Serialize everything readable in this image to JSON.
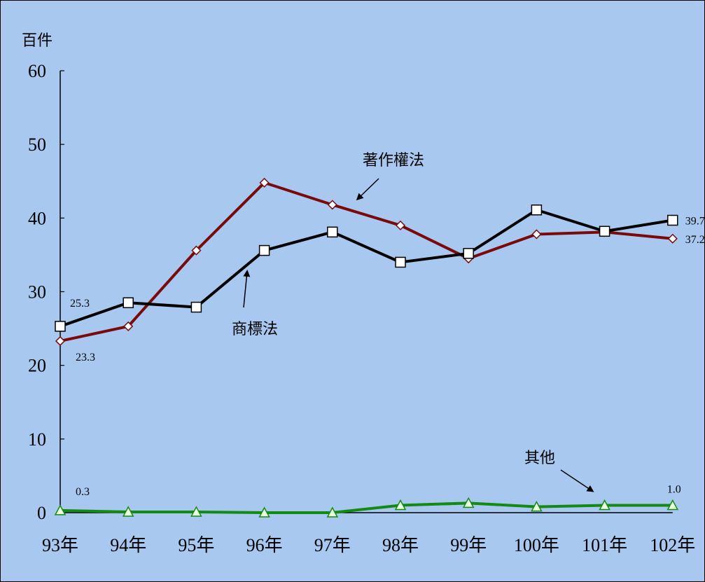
{
  "colors": {
    "background": "#a8c8ef",
    "axis": "#000000",
    "copyright": "#7a0a0a",
    "trademark": "#000000",
    "other": "#138a13"
  },
  "chart_data": {
    "type": "line",
    "title": "",
    "xlabel": "",
    "ylabel": "百件",
    "ylim": [
      0,
      60
    ],
    "yticks": [
      "0",
      "10",
      "20",
      "30",
      "40",
      "50",
      "60"
    ],
    "categories": [
      "93年",
      "94年",
      "95年",
      "96年",
      "97年",
      "98年",
      "99年",
      "100年",
      "101年",
      "102年"
    ],
    "grid": false,
    "series": [
      {
        "key": "copyright",
        "name": "著作權法",
        "marker": "diamond",
        "values": [
          23.3,
          25.3,
          35.6,
          44.8,
          41.8,
          39.0,
          34.5,
          37.8,
          38.1,
          37.2
        ]
      },
      {
        "key": "trademark",
        "name": "商標法",
        "marker": "square",
        "values": [
          25.3,
          28.5,
          27.9,
          35.6,
          38.1,
          34.0,
          35.2,
          41.1,
          38.2,
          39.7
        ]
      },
      {
        "key": "other",
        "name": "其他",
        "marker": "triangle",
        "values": [
          0.3,
          0.1,
          0.1,
          0.0,
          0.0,
          1.0,
          1.3,
          0.8,
          1.0,
          1.0
        ]
      }
    ],
    "data_labels": {
      "copyright": {
        "first": "23.3",
        "last": "37.2"
      },
      "trademark": {
        "first": "25.3",
        "last": "39.7"
      },
      "other": {
        "first": "0.3",
        "last": "1.0"
      }
    }
  }
}
